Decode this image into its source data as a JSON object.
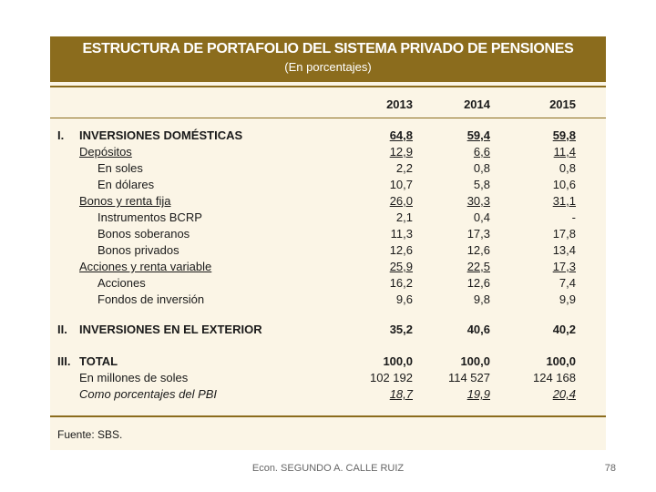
{
  "title": "ESTRUCTURA DE PORTAFOLIO DEL SISTEMA PRIVADO DE PENSIONES",
  "subtitle": "(En porcentajes)",
  "years": [
    "2013",
    "2014",
    "2015"
  ],
  "rows": [
    {
      "num": "I.",
      "label": "INVERSIONES DOMÉSTICAS",
      "values": [
        "64,8",
        "59,4",
        "59,8"
      ]
    },
    {
      "num": "",
      "label": "Depósitos",
      "values": [
        "12,9",
        "6,6",
        "11,4"
      ]
    },
    {
      "num": "",
      "label": "En soles",
      "values": [
        "2,2",
        "0,8",
        "0,8"
      ]
    },
    {
      "num": "",
      "label": "En dólares",
      "values": [
        "10,7",
        "5,8",
        "10,6"
      ]
    },
    {
      "num": "",
      "label": "Bonos y renta fija",
      "values": [
        "26,0",
        "30,3",
        "31,1"
      ]
    },
    {
      "num": "",
      "label": "Instrumentos BCRP",
      "values": [
        "2,1",
        "0,4",
        "-"
      ]
    },
    {
      "num": "",
      "label": "Bonos soberanos",
      "values": [
        "11,3",
        "17,3",
        "17,8"
      ]
    },
    {
      "num": "",
      "label": "Bonos privados",
      "values": [
        "12,6",
        "12,6",
        "13,4"
      ]
    },
    {
      "num": "",
      "label": "Acciones y renta variable",
      "values": [
        "25,9",
        "22,5",
        "17,3"
      ]
    },
    {
      "num": "",
      "label": "Acciones",
      "values": [
        "16,2",
        "12,6",
        "7,4"
      ]
    },
    {
      "num": "",
      "label": "Fondos de inversión",
      "values": [
        "9,6",
        "9,8",
        "9,9"
      ]
    },
    {
      "num": "II.",
      "label": "INVERSIONES EN EL EXTERIOR",
      "values": [
        "35,2",
        "40,6",
        "40,2"
      ]
    },
    {
      "num": "III.",
      "label": "TOTAL",
      "values": [
        "100,0",
        "100,0",
        "100,0"
      ]
    },
    {
      "num": "",
      "label": "En millones de soles",
      "values": [
        "102 192",
        "114 527",
        "124 168"
      ]
    },
    {
      "num": "",
      "label": "Como porcentajes del PBI",
      "values": [
        "18,7",
        "19,9",
        "20,4"
      ]
    }
  ],
  "footer": "Fuente: SBS.",
  "caption": "Econ. SEGUNDO A. CALLE RUIZ",
  "page_number": "78"
}
